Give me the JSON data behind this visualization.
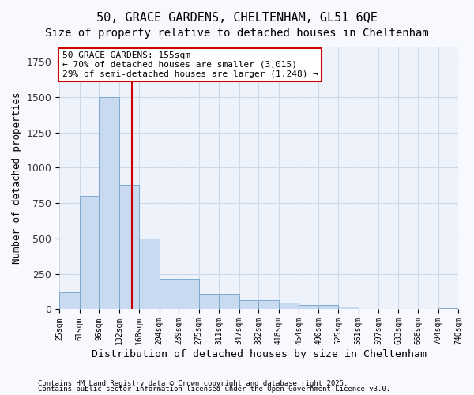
{
  "title_line1": "50, GRACE GARDENS, CHELTENHAM, GL51 6QE",
  "title_line2": "Size of property relative to detached houses in Cheltenham",
  "xlabel": "Distribution of detached houses by size in Cheltenham",
  "ylabel": "Number of detached properties",
  "bar_edges": [
    25,
    61,
    96,
    132,
    168,
    204,
    239,
    275,
    311,
    347,
    382,
    418,
    454,
    490,
    525,
    561,
    597,
    633,
    668,
    704,
    740
  ],
  "bar_heights": [
    120,
    800,
    1500,
    880,
    500,
    215,
    215,
    110,
    110,
    65,
    65,
    45,
    30,
    30,
    20,
    5,
    5,
    5,
    5,
    10
  ],
  "bar_color": "#c9d9f0",
  "bar_edgecolor": "#7aaad0",
  "grid_color": "#d0d8e8",
  "background_color": "#eef2fb",
  "property_line_x": 155,
  "annotation_text": "50 GRACE GARDENS: 155sqm\n← 70% of detached houses are smaller (3,015)\n29% of semi-detached houses are larger (1,248) →",
  "annotation_box_color": "#ffffff",
  "annotation_box_edgecolor": "#cc0000",
  "ylim": [
    0,
    1850
  ],
  "tick_labels": [
    "25sqm",
    "61sqm",
    "96sqm",
    "132sqm",
    "168sqm",
    "204sqm",
    "239sqm",
    "275sqm",
    "311sqm",
    "347sqm",
    "382sqm",
    "418sqm",
    "454sqm",
    "490sqm",
    "525sqm",
    "561sqm",
    "597sqm",
    "633sqm",
    "668sqm",
    "704sqm",
    "740sqm"
  ],
  "footnote1": "Contains HM Land Registry data © Crown copyright and database right 2025.",
  "footnote2": "Contains public sector information licensed under the Open Government Licence v3.0.",
  "red_line_color": "#cc0000",
  "title_fontsize": 11,
  "subtitle_fontsize": 10,
  "axis_label_fontsize": 9,
  "tick_fontsize": 7,
  "annotation_fontsize": 8
}
